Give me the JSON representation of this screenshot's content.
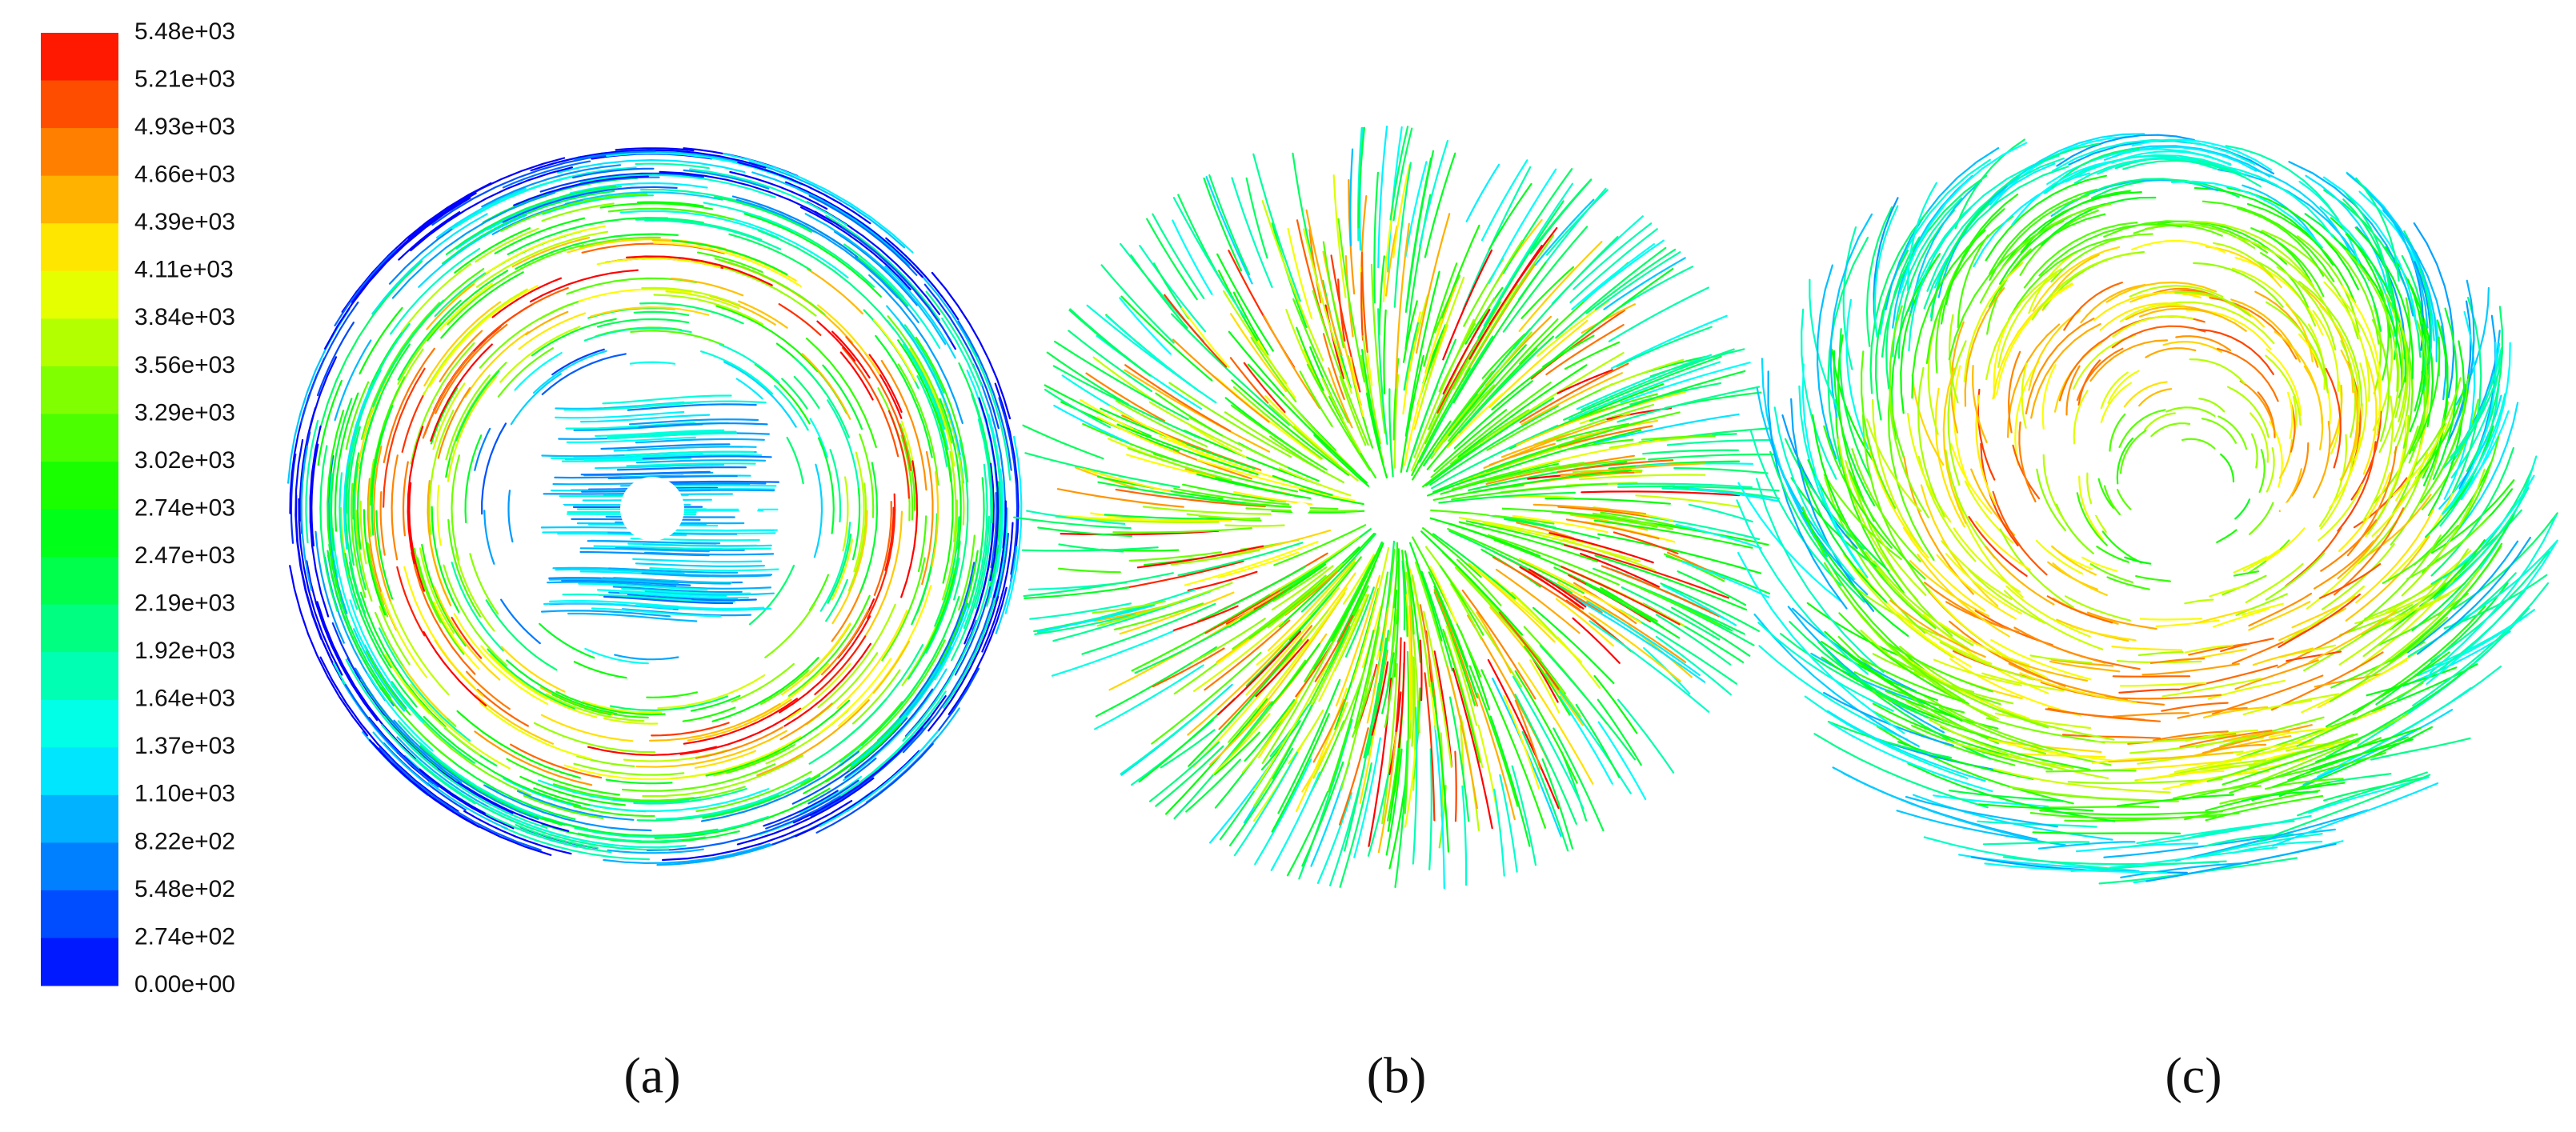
{
  "colorbar": {
    "labels": [
      "5.48e+03",
      "5.21e+03",
      "4.93e+03",
      "4.66e+03",
      "4.39e+03",
      "4.11e+03",
      "3.84e+03",
      "3.56e+03",
      "3.29e+03",
      "3.02e+03",
      "2.74e+03",
      "2.47e+03",
      "2.19e+03",
      "1.92e+03",
      "1.64e+03",
      "1.37e+03",
      "1.10e+03",
      "8.22e+02",
      "5.48e+02",
      "2.74e+02",
      "0.00e+00"
    ]
  },
  "panels": [
    {
      "label": "(a)",
      "pattern": "ring"
    },
    {
      "label": "(b)",
      "pattern": "radial"
    },
    {
      "label": "(c)",
      "pattern": "swirl"
    }
  ]
}
